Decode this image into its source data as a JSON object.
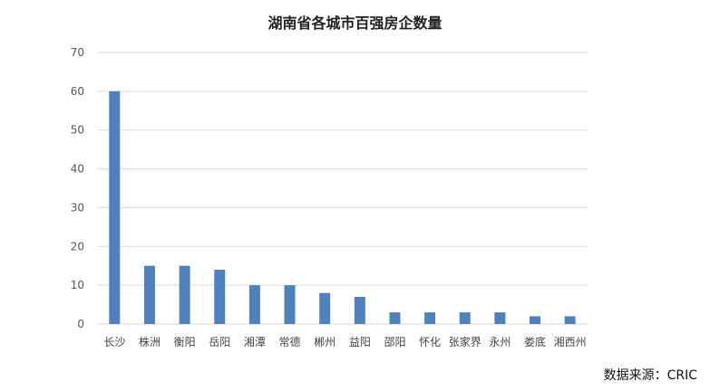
{
  "chart_data": {
    "type": "bar",
    "title": "湖南省各城市百强房企数量",
    "categories": [
      "长沙",
      "株洲",
      "衡阳",
      "岳阳",
      "湘潭",
      "常德",
      "郴州",
      "益阳",
      "邵阳",
      "怀化",
      "张家界",
      "永州",
      "娄底",
      "湘西州"
    ],
    "values": [
      60,
      15,
      15,
      14,
      10,
      10,
      8,
      7,
      3,
      3,
      3,
      3,
      2,
      2
    ],
    "yticks": [
      0,
      10,
      20,
      30,
      40,
      50,
      60,
      70
    ],
    "ylim": [
      0,
      70
    ],
    "grid": true,
    "legend": "none",
    "bar_color": "#4f81bd",
    "grid_color": "#d9d9d9"
  },
  "source": "数据来源：CRIC"
}
